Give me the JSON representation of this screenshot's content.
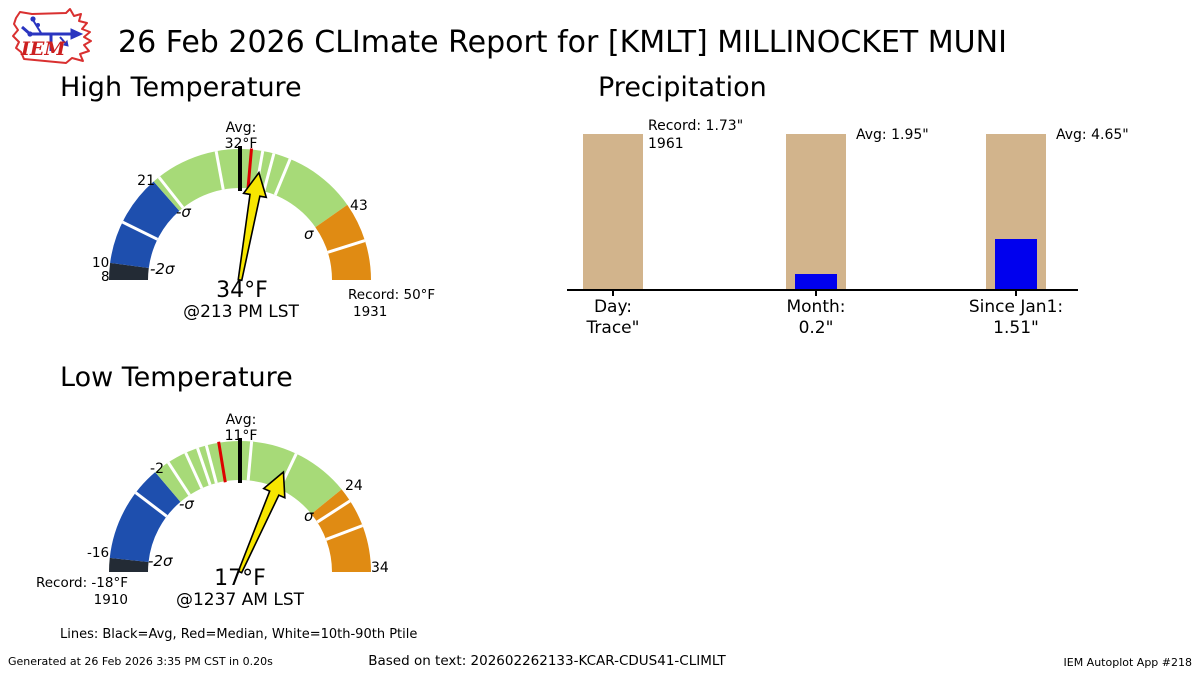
{
  "header": {
    "title": "26 Feb 2026 CLImate Report for [KMLT] MILLINOCKET MUNI",
    "logo_text": "IEM"
  },
  "sections": {
    "high": "High Temperature",
    "low": "Low Temperature",
    "precip": "Precipitation"
  },
  "gauges": {
    "high": {
      "avg_top": "Avg:",
      "avg_val": "32°F",
      "label_low_green": "21",
      "label_neg_sigma": "-σ",
      "label_neg2sigma_val": "10",
      "label_min": "8",
      "label_neg2_sigma": "-2σ",
      "label_high_green": "43",
      "label_sigma": "σ",
      "record_line1": "Record: 50°F",
      "record_line2": "1931",
      "value": "34°F",
      "time": "@213 PM LST"
    },
    "low": {
      "avg_top": "Avg:",
      "avg_val": "11°F",
      "label_low_green": "-2",
      "label_neg_sigma": "-σ",
      "label_neg2sigma_val": "-16",
      "label_neg2_sigma": "-2σ",
      "label_high_green": "24",
      "label_sigma": "σ",
      "label_max": "34",
      "record_line1": "Record: -18°F",
      "record_line2": "1910",
      "value": "17°F",
      "time": "@1237 AM LST"
    }
  },
  "precip": {
    "bars": [
      {
        "cat_line1": "Day:",
        "cat_line2": "Trace\"",
        "ann_line1": "Record: 1.73\"",
        "ann_line2": "1961"
      },
      {
        "cat_line1": "Month:",
        "cat_line2": "0.2\"",
        "ann_line1": "Avg: 1.95\"",
        "ann_line2": ""
      },
      {
        "cat_line1": "Since Jan1:",
        "cat_line2": "1.51\"",
        "ann_line1": "Avg: 4.65\"",
        "ann_line2": ""
      }
    ]
  },
  "footnote": "Lines: Black=Avg, Red=Median, White=10th-90th Ptile",
  "footer": {
    "left": "Generated at 26 Feb 2026 3:35 PM CST in 0.20s",
    "center": "Based on text: 202602262133-KCAR-CDUS41-CLIMLT",
    "right": "IEM Autoplot App #218"
  },
  "colors": {
    "gauge_dark": "#232b35",
    "gauge_blue": "#1e4fae",
    "gauge_green": "#a7da78",
    "gauge_orange": "#e08b13",
    "needle_yellow": "#f7e600",
    "tick_red": "#dd0000",
    "tick_black": "#000000",
    "tick_white": "#ffffff",
    "bar_tan": "#d2b48c",
    "bar_blue": "#0000ee",
    "logo_red": "#cc2020",
    "logo_blue": "#2a35c0"
  },
  "chart_data": [
    {
      "type": "gauge",
      "title": "High Temperature",
      "units": "°F",
      "min": 8,
      "max": 50,
      "avg": 32,
      "median": 33,
      "observed": 34,
      "observed_time": "213 PM LST",
      "record": 50,
      "record_year": "1931",
      "minus_2sigma": 10,
      "minus_sigma": 21,
      "plus_sigma": 43,
      "segments": [
        {
          "from": 8,
          "to": 10,
          "color": "#232b35"
        },
        {
          "from": 10,
          "to": 21,
          "color": "#1e4fae"
        },
        {
          "from": 21,
          "to": 43,
          "color": "#a7da78"
        },
        {
          "from": 43,
          "to": 50,
          "color": "#e08b13"
        }
      ],
      "white_ticks": [
        15,
        21.8,
        29.2,
        34,
        35,
        36.5,
        46.5
      ]
    },
    {
      "type": "gauge",
      "title": "Low Temperature",
      "units": "°F",
      "min": -18,
      "max": 34,
      "avg": 11,
      "median": 8,
      "observed": 17,
      "observed_time": "1237 AM LST",
      "record": -18,
      "record_year": "1910",
      "minus_2sigma": -16,
      "minus_sigma": -2,
      "plus_sigma": 24,
      "segments": [
        {
          "from": -18,
          "to": -16,
          "color": "#232b35"
        },
        {
          "from": -16,
          "to": -2,
          "color": "#1e4fae"
        },
        {
          "from": -2,
          "to": 24,
          "color": "#a7da78"
        },
        {
          "from": 24,
          "to": 34,
          "color": "#e08b13"
        }
      ],
      "white_ticks": [
        -6,
        0.3,
        3.1,
        4.9,
        6.2,
        12.3,
        17.5,
        25.6,
        28.7
      ]
    },
    {
      "type": "bar",
      "title": "Precipitation",
      "categories": [
        "Day:",
        "Month:",
        "Since Jan1:"
      ],
      "observed": [
        "Trace",
        0.2,
        1.51
      ],
      "reference": [
        1.73,
        1.95,
        4.65
      ],
      "reference_labels": [
        "Record: 1.73\" 1961",
        "Avg: 1.95\"",
        "Avg: 4.65\""
      ],
      "observed_color": "#0000ee",
      "reference_color": "#d2b48c",
      "ylim": [
        0,
        1
      ],
      "note": "tan bar = record/average reference, blue bar = observed"
    }
  ]
}
